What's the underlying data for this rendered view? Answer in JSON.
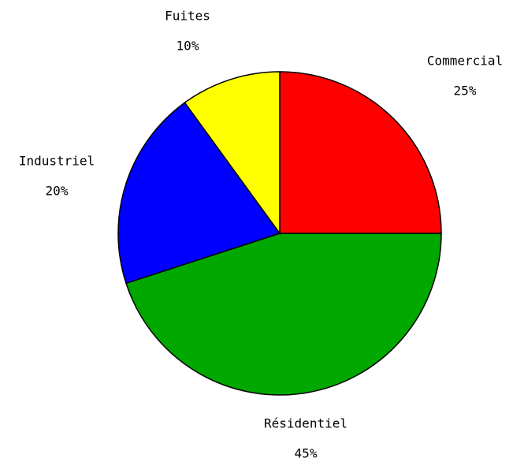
{
  "chart_data": {
    "type": "pie",
    "categories": [
      "Commercial",
      "Résidentiel",
      "Industriel",
      "Fuites"
    ],
    "values": [
      25,
      45,
      20,
      10
    ],
    "value_labels": [
      "25%",
      "45%",
      "20%",
      "10%"
    ],
    "colors": [
      "#ff0000",
      "#00a800",
      "#0000ff",
      "#ffff00"
    ]
  }
}
